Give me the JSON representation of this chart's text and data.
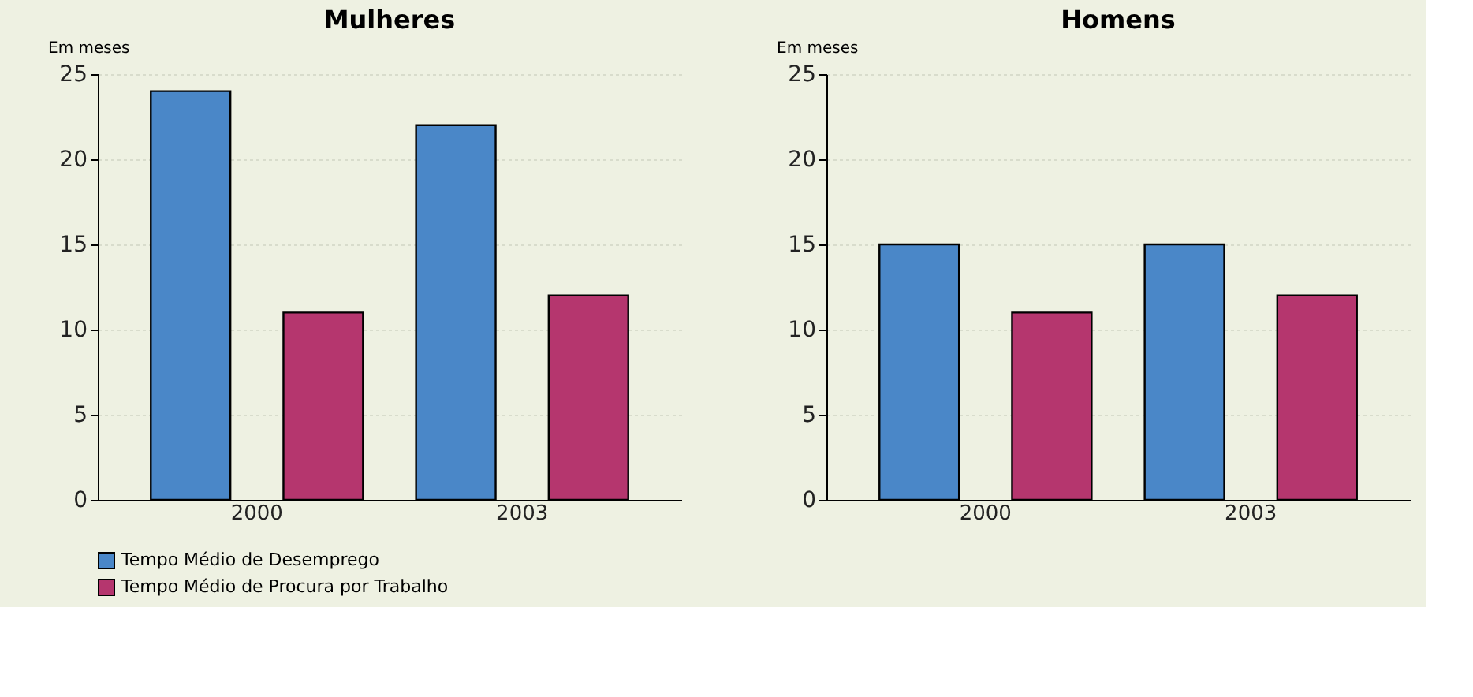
{
  "chart_data": [
    {
      "type": "bar",
      "title": "Mulheres",
      "ylabel": "Em meses",
      "categories": [
        "2000",
        "2003"
      ],
      "series": [
        {
          "name": "Tempo Médio de Desemprego",
          "color": "#4a87c8",
          "values": [
            24,
            22
          ]
        },
        {
          "name": "Tempo Médio de Procura por Trabalho",
          "color": "#b5366e",
          "values": [
            11,
            12
          ]
        }
      ],
      "ylim": [
        0,
        25
      ],
      "yticks": [
        0,
        5,
        10,
        15,
        20,
        25
      ],
      "grid": "y",
      "legend": "bottom"
    },
    {
      "type": "bar",
      "title": "Homens",
      "ylabel": "Em meses",
      "categories": [
        "2000",
        "2003"
      ],
      "series": [
        {
          "color": "#4a87c8",
          "values": [
            15,
            15
          ]
        },
        {
          "color": "#b5366e",
          "values": [
            11,
            12
          ]
        }
      ],
      "ylim": [
        0,
        25
      ],
      "yticks": [
        0,
        5,
        10,
        15,
        20,
        25
      ],
      "grid": "y"
    }
  ]
}
